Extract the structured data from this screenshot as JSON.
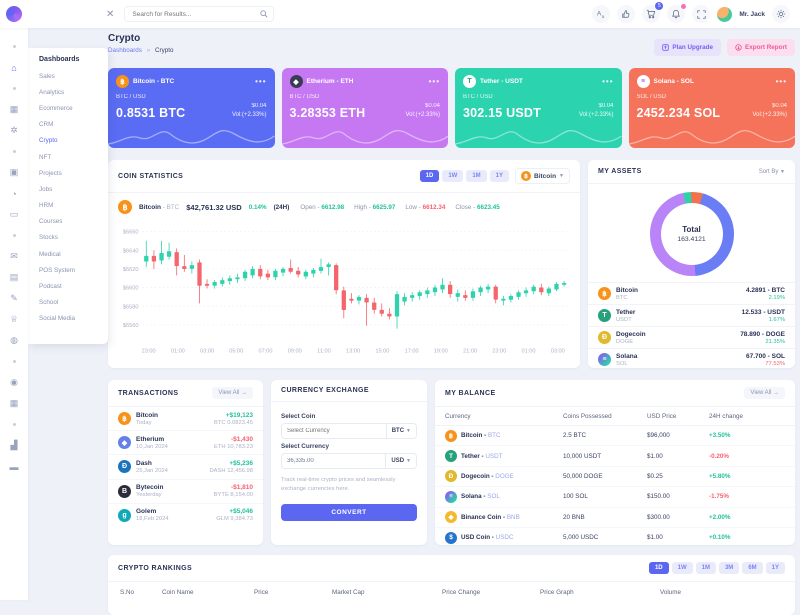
{
  "colors": {
    "accent": "#5b67f1",
    "green": "#22c29c",
    "red": "#fb5e6e",
    "candle_green": "#2fd3ab",
    "candle_red": "#f4656c"
  },
  "topbar": {
    "search_placeholder": "Search for Results...",
    "cart_badge": "5",
    "user_name": "Mr. Jack"
  },
  "rail_items": [
    {
      "name": "dot",
      "glyph": ""
    },
    {
      "name": "home",
      "glyph": "⌂",
      "active": true
    },
    {
      "name": "dot",
      "glyph": ""
    },
    {
      "name": "apps",
      "glyph": "▦"
    },
    {
      "name": "settings-hex",
      "glyph": "✲"
    },
    {
      "name": "dot",
      "glyph": ""
    },
    {
      "name": "briefcase",
      "glyph": "▣"
    },
    {
      "name": "clock",
      "glyph": "◔"
    },
    {
      "name": "image",
      "glyph": "▭"
    },
    {
      "name": "dot",
      "glyph": ""
    },
    {
      "name": "mail",
      "glyph": "✉"
    },
    {
      "name": "archive",
      "glyph": "▤"
    },
    {
      "name": "pen",
      "glyph": "✎"
    },
    {
      "name": "award",
      "glyph": "♕"
    },
    {
      "name": "globe",
      "glyph": "◍"
    },
    {
      "name": "dot",
      "glyph": ""
    },
    {
      "name": "compass",
      "glyph": "◉"
    },
    {
      "name": "calendar",
      "glyph": "▦"
    },
    {
      "name": "dot",
      "glyph": ""
    },
    {
      "name": "chart",
      "glyph": "▟"
    },
    {
      "name": "wallet",
      "glyph": "▬"
    }
  ],
  "sidebar": {
    "menu_title": "Dashboards",
    "active_item": "Crypto",
    "items": [
      "Sales",
      "Analytics",
      "Ecommerce",
      "CRM",
      "Crypto",
      "NFT",
      "Projects",
      "Jobs",
      "HRM",
      "Courses",
      "Stocks",
      "Medical",
      "POS System",
      "Podcast",
      "School",
      "Social Media"
    ]
  },
  "page": {
    "title": "Crypto",
    "breadcrumb_parent": "Dashboards",
    "breadcrumb_sep": "»",
    "breadcrumb_current": "Crypto",
    "action_primary": "Plan Upgrade",
    "action_secondary": "Export Report"
  },
  "cards": [
    {
      "name": "Bitcoin - BTC",
      "pair": "BTC / USD",
      "amount": "0.8531 BTC",
      "price": "$0.04",
      "vol": "Vol:(+2.33%)",
      "bg": "#5a6cf3",
      "icon_bg": "#f7931a",
      "icon_fg": "#ffffff",
      "glyph": "฿"
    },
    {
      "name": "Etherium - ETH",
      "pair": "BTC / USD",
      "amount": "3.28353 ETH",
      "price": "$0.04",
      "vol": "Vol:(+2.33%)",
      "bg": "#c678f2",
      "icon_bg": "#3b3b58",
      "icon_fg": "#ffffff",
      "glyph": "◆"
    },
    {
      "name": "Tether - USDT",
      "pair": "BTC / USD",
      "amount": "302.15 USDT",
      "price": "$0.04",
      "vol": "Vol:(+2.33%)",
      "bg": "#2bd3ae",
      "icon_bg": "#ffffff",
      "icon_fg": "#26a17b",
      "glyph": "T"
    },
    {
      "name": "Solana - SOL",
      "pair": "SOL / USD",
      "amount": "2452.234 SOL",
      "price": "$0.04",
      "vol": "Vol:(+2.33%)",
      "bg": "#f4735a",
      "icon_bg": "#ffffff",
      "icon_fg": "#9945ff",
      "glyph": "≡"
    }
  ],
  "coin_statistics": {
    "title": "COIN STATISTICS",
    "ranges": [
      "1D",
      "1W",
      "1M",
      "1Y"
    ],
    "active_range": "1D",
    "coin_select": "Bitcoin",
    "coin_name": "Bitcoin",
    "coin_ticker": "BTC",
    "price": "$42,761.32 USD",
    "change": "0.14%",
    "period": "(24H)",
    "stats": [
      {
        "label": "Open",
        "value": "6612.98",
        "dir": "up"
      },
      {
        "label": "High",
        "value": "6625.97",
        "dir": "up"
      },
      {
        "label": "Low",
        "value": "6612.34",
        "dir": "down"
      },
      {
        "label": "Close",
        "value": "6623.45",
        "dir": "up"
      }
    ]
  },
  "chart_data": {
    "type": "candlestick",
    "title": "Bitcoin BTC/USD 1D",
    "y_ticks": [
      {
        "v": 6660,
        "label": "$6660"
      },
      {
        "v": 6640,
        "label": "$6640"
      },
      {
        "v": 6620,
        "label": "$6620"
      },
      {
        "v": 6600,
        "label": "$6600"
      },
      {
        "v": 6580,
        "label": "$6580"
      },
      {
        "v": 6560,
        "label": "$6560"
      }
    ],
    "y_range": [
      6548,
      6668
    ],
    "x_labels": [
      "23:00",
      "01:00",
      "03:00",
      "05:00",
      "07:00",
      "09:00",
      "11:00",
      "13:00",
      "15:00",
      "17:00",
      "19:00",
      "21:00",
      "23:00",
      "01:00",
      "03:00"
    ],
    "grid": true,
    "candles": [
      [
        6628,
        6650,
        6622,
        6634
      ],
      [
        6634,
        6640,
        6620,
        6628
      ],
      [
        6629,
        6650,
        6625,
        6637
      ],
      [
        6633,
        6648,
        6630,
        6639
      ],
      [
        6638,
        6642,
        6613,
        6623
      ],
      [
        6623,
        6635,
        6617,
        6620
      ],
      [
        6620,
        6628,
        6615,
        6624
      ],
      [
        6627,
        6630,
        6583,
        6602
      ],
      [
        6604,
        6609,
        6599,
        6602
      ],
      [
        6602,
        6608,
        6599,
        6606
      ],
      [
        6604,
        6611,
        6601,
        6608
      ],
      [
        6607,
        6613,
        6603,
        6610
      ],
      [
        6609,
        6615,
        6605,
        6611
      ],
      [
        6610,
        6619,
        6607,
        6617
      ],
      [
        6613,
        6623,
        6610,
        6620
      ],
      [
        6620,
        6624,
        6609,
        6612
      ],
      [
        6615,
        6619,
        6608,
        6611
      ],
      [
        6611,
        6620,
        6608,
        6618
      ],
      [
        6616,
        6622,
        6612,
        6620
      ],
      [
        6621,
        6630,
        6615,
        6617
      ],
      [
        6618,
        6622,
        6611,
        6614
      ],
      [
        6612,
        6619,
        6609,
        6617
      ],
      [
        6615,
        6621,
        6611,
        6619
      ],
      [
        6618,
        6631,
        6615,
        6622
      ],
      [
        6622,
        6627,
        6613,
        6625
      ],
      [
        6624,
        6626,
        6593,
        6597
      ],
      [
        6597,
        6601,
        6567,
        6576
      ],
      [
        6588,
        6594,
        6583,
        6586
      ],
      [
        6586,
        6592,
        6582,
        6590
      ],
      [
        6589,
        6593,
        6559,
        6584
      ],
      [
        6584,
        6589,
        6572,
        6576
      ],
      [
        6576,
        6583,
        6569,
        6572
      ],
      [
        6572,
        6578,
        6566,
        6569
      ],
      [
        6569,
        6596,
        6556,
        6593
      ],
      [
        6585,
        6594,
        6581,
        6590
      ],
      [
        6589,
        6595,
        6585,
        6592
      ],
      [
        6591,
        6597,
        6587,
        6595
      ],
      [
        6593,
        6600,
        6589,
        6597
      ],
      [
        6595,
        6603,
        6591,
        6600
      ],
      [
        6598,
        6610,
        6594,
        6603
      ],
      [
        6603,
        6607,
        6589,
        6593
      ],
      [
        6590,
        6598,
        6585,
        6594
      ],
      [
        6592,
        6597,
        6586,
        6589
      ],
      [
        6589,
        6599,
        6586,
        6596
      ],
      [
        6595,
        6602,
        6591,
        6600
      ],
      [
        6598,
        6604,
        6594,
        6601
      ],
      [
        6601,
        6603,
        6583,
        6587
      ],
      [
        6586,
        6591,
        6581,
        6588
      ],
      [
        6587,
        6593,
        6584,
        6591
      ],
      [
        6590,
        6597,
        6587,
        6595
      ],
      [
        6594,
        6600,
        6590,
        6597
      ],
      [
        6596,
        6603,
        6593,
        6601
      ],
      [
        6600,
        6604,
        6592,
        6595
      ],
      [
        6594,
        6601,
        6591,
        6599
      ],
      [
        6598,
        6606,
        6596,
        6604
      ],
      [
        6603,
        6607,
        6601,
        6605
      ]
    ]
  },
  "my_assets": {
    "title": "MY ASSETS",
    "sort_label": "Sort By",
    "total_label": "Total",
    "total_value": "163.4121",
    "donut": {
      "start_deg": -12,
      "segments": [
        {
          "name": "teal",
          "color": "#2dd3a8",
          "pct": 3
        },
        {
          "name": "orange",
          "color": "#f0734d",
          "pct": 4.5
        },
        {
          "name": "indigo",
          "color": "#6a7df5",
          "pct": 44.5
        },
        {
          "name": "purple",
          "color": "#b984f7",
          "pct": 48
        }
      ]
    },
    "assets": [
      {
        "name": "Bitcoin",
        "ticker": "BTC",
        "amount": "4.2891 - BTC",
        "change": "2.19%",
        "dir": "up",
        "icon_bg": "#f7931a",
        "glyph": "฿"
      },
      {
        "name": "Tether",
        "ticker": "USDT",
        "amount": "12.533 - USDT",
        "change": "1.67%",
        "dir": "up",
        "icon_bg": "#26a17b",
        "glyph": "T"
      },
      {
        "name": "Dogecoin",
        "ticker": "DOGE",
        "amount": "78.890 - DOGE",
        "change": "21.35%",
        "dir": "up",
        "icon_bg": "#e1b92c",
        "glyph": "Ð"
      },
      {
        "name": "Solana",
        "ticker": "SOL",
        "amount": "67.700 - SOL",
        "change": "77.53%",
        "dir": "down",
        "icon_bg": "linear-gradient(135deg,#9945ff,#14f195)",
        "glyph": "≡"
      }
    ]
  },
  "transactions": {
    "title": "TRANSACTIONS",
    "view_all": "View All →",
    "items": [
      {
        "name": "Bitcoin",
        "date": "Today",
        "amount": "+$19,123",
        "sub": "BTC 0.0823.45",
        "dir": "up",
        "icon_bg": "#f7931a",
        "glyph": "฿"
      },
      {
        "name": "Etherium",
        "date": "10,Jan 2024",
        "amount": "-$1,430",
        "sub": "ETH 10,783.23",
        "dir": "down",
        "icon_bg": "#6481e7",
        "glyph": "◆"
      },
      {
        "name": "Dash",
        "date": "25,Jan 2024",
        "amount": "+$5,236",
        "sub": "DASH 12,456.98",
        "dir": "up",
        "icon_bg": "#1c75bc",
        "glyph": "Ð"
      },
      {
        "name": "Bytecoin",
        "date": "Yesterday",
        "amount": "-$1,810",
        "sub": "BYTE 8,154.00",
        "dir": "down",
        "icon_bg": "#2b2b3b",
        "glyph": "B"
      },
      {
        "name": "Golem",
        "date": "18,Feb 2024",
        "amount": "+$5,046",
        "sub": "GLM 9,384.73",
        "dir": "up",
        "icon_bg": "#10a9b8",
        "glyph": "g"
      }
    ]
  },
  "currency_exchange": {
    "title": "CURRENCY EXCHANGE",
    "select_coin_label": "Select Coin",
    "coin_placeholder": "Select Currency",
    "coin_unit": "BTC",
    "select_currency_label": "Select Currency",
    "amount_value": "36,335.00",
    "currency_unit": "USD",
    "note": "Track real-time crypto prices and seamlessly exchange currencies here.",
    "convert_label": "CONVERT"
  },
  "my_balance": {
    "title": "MY BALANCE",
    "view_all": "View All →",
    "headers": [
      "Currency",
      "Coins Possessed",
      "USD Price",
      "24H change"
    ],
    "rows": [
      {
        "name": "Bitcoin -",
        "ticker": "BTC",
        "coins": "2.5 BTC",
        "price": "$96,000",
        "change": "+3.50%",
        "dir": "up",
        "icon_bg": "#f7931a",
        "glyph": "฿"
      },
      {
        "name": "Tether -",
        "ticker": "USDT",
        "coins": "10,000 USDT",
        "price": "$1.00",
        "change": "-0.20%",
        "dir": "down",
        "icon_bg": "#26a17b",
        "glyph": "T"
      },
      {
        "name": "Dogecoin -",
        "ticker": "DOGE",
        "coins": "50,000 DOGE",
        "price": "$0.25",
        "change": "+5.80%",
        "dir": "up",
        "icon_bg": "#e1b92c",
        "glyph": "Ð"
      },
      {
        "name": "Solana -",
        "ticker": "SOL",
        "coins": "100 SOL",
        "price": "$150.00",
        "change": "-1.75%",
        "dir": "down",
        "icon_bg": "linear-gradient(135deg,#9945ff,#14f195)",
        "glyph": "≡"
      },
      {
        "name": "Binance Coin -",
        "ticker": "BNB",
        "coins": "20 BNB",
        "price": "$300.00",
        "change": "+2.00%",
        "dir": "up",
        "icon_bg": "#f3ba2f",
        "glyph": "◆"
      },
      {
        "name": "USD Coin -",
        "ticker": "USDC",
        "coins": "5,000 USDC",
        "price": "$1.00",
        "change": "+0.10%",
        "dir": "up",
        "icon_bg": "#2775ca",
        "glyph": "$"
      }
    ]
  },
  "crypto_rankings": {
    "title": "CRYPTO RANKINGS",
    "ranges": [
      "1D",
      "1W",
      "1M",
      "3M",
      "6M",
      "1Y"
    ],
    "active_range": "1D",
    "headers": [
      "S.No",
      "Coin Name",
      "Price",
      "Market Cap",
      "Price Change",
      "Price Graph",
      "Volume"
    ]
  }
}
